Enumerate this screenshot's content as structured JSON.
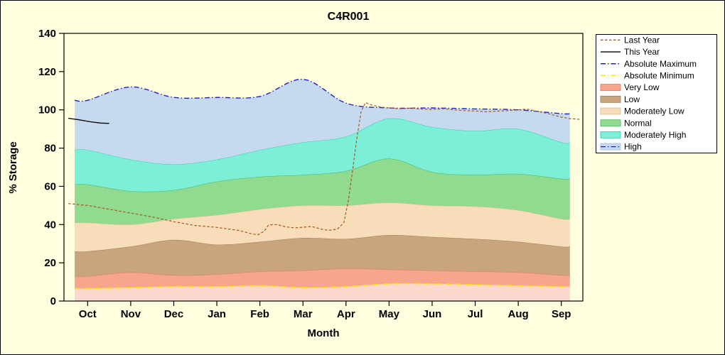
{
  "figure": {
    "background": "#FFFFE0",
    "border_color": "#000000",
    "legend_background": "#FFFFFF"
  },
  "chart_data": {
    "type": "area",
    "title": "C4R001",
    "xlabel": "Month",
    "ylabel": "% Storage",
    "x_categories": [
      "Oct",
      "Nov",
      "Dec",
      "Jan",
      "Feb",
      "Mar",
      "Apr",
      "May",
      "Jun",
      "Jul",
      "Aug",
      "Sep"
    ],
    "ylim": [
      0,
      140
    ],
    "ytick_step": 20,
    "grid": false,
    "legend_position": "outside-top-right",
    "boundaries": {
      "absolute_minimum": [
        6.5,
        7,
        7.5,
        7.5,
        8,
        7,
        7.5,
        9,
        9,
        8.5,
        8,
        7.5
      ],
      "very_low_top": [
        13,
        15,
        13.5,
        14,
        15.5,
        16,
        17,
        16.5,
        16,
        15.5,
        15,
        13.5
      ],
      "low_top": [
        26,
        28.5,
        32,
        29.5,
        31,
        33,
        32.5,
        34.5,
        33.5,
        32.5,
        31,
        28.5
      ],
      "moderately_low_top": [
        41,
        40,
        43,
        45,
        48,
        50,
        50,
        51.5,
        50,
        49.5,
        47.5,
        43
      ],
      "normal_top": [
        61,
        57.5,
        58,
        62.5,
        65,
        66,
        68,
        74.5,
        67.5,
        66,
        66.5,
        64
      ],
      "moderately_high_top": [
        79,
        74,
        71.5,
        74,
        79,
        83,
        86,
        95.5,
        91,
        89,
        90,
        83
      ],
      "absolute_maximum": [
        105,
        112,
        106.5,
        106.5,
        107,
        116,
        103.5,
        101,
        101,
        100.5,
        100,
        98
      ]
    },
    "bands": [
      {
        "name": "below-minimum",
        "label": null,
        "fill": "#FAD8CE",
        "stroke": null,
        "top": "absolute_minimum"
      },
      {
        "name": "very-low",
        "label": "Very Low",
        "fill": "#F7A58C",
        "stroke": "#DB7A5E",
        "top": "very_low_top"
      },
      {
        "name": "low",
        "label": "Low",
        "fill": "#C8A57E",
        "stroke": "#A07C51",
        "top": "low_top"
      },
      {
        "name": "moderately-low",
        "label": "Moderately Low",
        "fill": "#F8DDBB",
        "stroke": "#DCB98C",
        "top": "moderately_low_top"
      },
      {
        "name": "normal",
        "label": "Normal",
        "fill": "#90DB8F",
        "stroke": "#4DB35A",
        "top": "normal_top"
      },
      {
        "name": "moderately-high",
        "label": "Moderately High",
        "fill": "#7EEFD7",
        "stroke": "#2FCFAE",
        "top": "moderately_high_top"
      },
      {
        "name": "high",
        "label": "High",
        "fill": "#C5DAEF",
        "stroke": null,
        "top": "absolute_maximum"
      }
    ],
    "lines": [
      {
        "name": "absolute-minimum",
        "label": "Absolute Minimum",
        "color": "#FFE104",
        "width": 1.8,
        "dash": "7 3 1.5 3",
        "boundary": "absolute_minimum"
      },
      {
        "name": "absolute-maximum",
        "label": "Absolute Maximum",
        "color": "#2020CD",
        "width": 1.4,
        "dash": "7 3 1.5 3",
        "boundary": "absolute_maximum"
      },
      {
        "name": "last-year",
        "label": "Last Year",
        "color": "#A9561E",
        "width": 1.2,
        "dash": "3.5 2.5",
        "points": [
          [
            -0.45,
            51
          ],
          [
            0,
            50
          ],
          [
            0.5,
            48
          ],
          [
            1,
            46
          ],
          [
            1.5,
            44
          ],
          [
            2,
            41.5
          ],
          [
            2.5,
            39.5
          ],
          [
            3,
            38.5
          ],
          [
            3.5,
            37
          ],
          [
            3.8,
            35.2
          ],
          [
            3.95,
            34.6
          ],
          [
            4.1,
            36.5
          ],
          [
            4.2,
            39.8
          ],
          [
            4.4,
            40
          ],
          [
            4.6,
            38.8
          ],
          [
            4.8,
            38.3
          ],
          [
            5,
            38.6
          ],
          [
            5.2,
            39
          ],
          [
            5.45,
            37.5
          ],
          [
            5.6,
            37
          ],
          [
            5.8,
            37.6
          ],
          [
            5.95,
            41
          ],
          [
            6.05,
            52
          ],
          [
            6.15,
            68
          ],
          [
            6.25,
            85
          ],
          [
            6.35,
            99
          ],
          [
            6.45,
            103.8
          ],
          [
            6.6,
            102.5
          ],
          [
            6.8,
            101.5
          ],
          [
            7,
            101
          ],
          [
            7.25,
            100.6
          ],
          [
            7.5,
            100.9
          ],
          [
            7.75,
            100.4
          ],
          [
            8,
            100.2
          ],
          [
            8.25,
            100.6
          ],
          [
            8.5,
            100
          ],
          [
            8.75,
            99.6
          ],
          [
            9,
            99.4
          ],
          [
            9.25,
            99
          ],
          [
            9.5,
            99.3
          ],
          [
            9.75,
            99.6
          ],
          [
            10,
            100
          ],
          [
            10.2,
            100.4
          ],
          [
            10.45,
            99.2
          ],
          [
            10.7,
            98
          ],
          [
            11,
            96.2
          ],
          [
            11.2,
            95.4
          ],
          [
            11.45,
            95
          ]
        ]
      },
      {
        "name": "this-year",
        "label": "This Year",
        "color": "#000000",
        "width": 1.3,
        "dash": null,
        "points": [
          [
            -0.45,
            95.6
          ],
          [
            -0.2,
            94.8
          ],
          [
            0.05,
            93.8
          ],
          [
            0.3,
            93.1
          ],
          [
            0.5,
            92.9
          ]
        ]
      }
    ],
    "legend_items": [
      {
        "label": "Last Year",
        "type": "line",
        "color": "#A9561E",
        "dash": "3.5 2.5"
      },
      {
        "label": "This Year",
        "type": "line",
        "color": "#000000",
        "dash": null
      },
      {
        "label": "Absolute Maximum",
        "type": "line",
        "color": "#2020CD",
        "dash": "7 3 1.5 3"
      },
      {
        "label": "Absolute Minimum",
        "type": "line",
        "color": "#FFE104",
        "dash": "7 3 1.5 3"
      },
      {
        "label": "Very Low",
        "type": "patch",
        "fill": "#F7A58C",
        "border": "#DB7A5E"
      },
      {
        "label": "Low",
        "type": "patch",
        "fill": "#C8A57E",
        "border": "#A07C51"
      },
      {
        "label": "Moderately Low",
        "type": "patch",
        "fill": "#F8DDBB",
        "border": "#DCB98C"
      },
      {
        "label": "Normal",
        "type": "patch",
        "fill": "#90DB8F",
        "border": "#4DB35A"
      },
      {
        "label": "Moderately High",
        "type": "patch",
        "fill": "#7EEFD7",
        "border": "#2FCFAE"
      },
      {
        "label": "High",
        "type": "patch",
        "fill": "#C5DAEF",
        "border": "#9FBFDF",
        "line_color": "#2020CD",
        "line_dash": "7 3 1.5 3"
      }
    ]
  }
}
